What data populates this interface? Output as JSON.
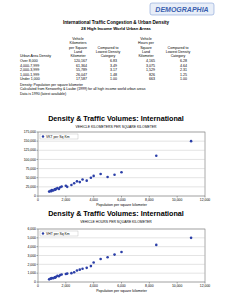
{
  "header": {
    "logo": "DEMOGRAPHIA",
    "title": "International Traffic Congestion & Urban Density",
    "subtitle": "28 High Income World Urban Areas"
  },
  "table": {
    "columns": [
      [
        "Urban Area Density"
      ],
      [
        "Vehicle",
        "Kilometers",
        "per Square",
        "Land",
        "Kilometer"
      ],
      [
        "",
        "Compared to",
        "Lowest Density",
        "Category"
      ],
      [
        "Vehicle",
        "Hours per",
        "Square",
        "Land",
        "Kilometer"
      ],
      [
        "",
        "Compared to",
        "Lowest Density",
        "Category"
      ]
    ],
    "rows": [
      [
        "Over 8,000",
        "120,167",
        "6.83",
        "4,165",
        "6.28"
      ],
      [
        "4,000-7,999",
        "61,364",
        "3.49",
        "3,075",
        "4.64"
      ],
      [
        "2,000-3,999",
        "55,789",
        "3.17",
        "1,529",
        "2.31"
      ],
      [
        "1,000-1,999",
        "26,047",
        "1.48",
        "826",
        "1.25"
      ],
      [
        "Under 1,000",
        "17,587",
        "1.00",
        "663",
        "1.00"
      ]
    ]
  },
  "notes": [
    "Density: Population per square kilometer",
    "Calculated from Kenworthy & Laube (1999) for all high income world urban areas",
    "Data is 1990 (latest available)"
  ],
  "chart_data": [
    {
      "type": "scatter",
      "title": "Density & Traffic Volumes: International",
      "subtitle": "VEHICLE KILOMETERS PER SQUARE KILOMETER",
      "x_label": "Population per square kilometer",
      "x": [
        800,
        900,
        1000,
        1100,
        1200,
        1300,
        1400,
        1500,
        1600,
        2000,
        1250,
        950,
        1700,
        2100,
        2400,
        2600,
        2800,
        3000,
        3200,
        3500,
        3800,
        4000,
        4500,
        5000,
        5500,
        6000,
        8500,
        11000
      ],
      "series": [
        {
          "name": "VKT per Sq Km",
          "color": "#2b3fa8",
          "marker": "circle",
          "values": [
            12000,
            14000,
            16000,
            15000,
            18000,
            20000,
            22000,
            19000,
            24000,
            28000,
            17000,
            13000,
            26000,
            25000,
            30000,
            35000,
            40000,
            38000,
            45000,
            42000,
            50000,
            55000,
            60000,
            52000,
            58000,
            65000,
            110000,
            150000
          ]
        }
      ],
      "xlim": [
        0,
        12000
      ],
      "xticks": [
        0,
        {
          "value": 2000,
          "label": "2,000"
        },
        {
          "value": 4000,
          "label": "4,000"
        },
        {
          "value": 6000,
          "label": "6,000"
        },
        {
          "value": 8000,
          "label": "8,000"
        },
        {
          "value": 10000,
          "label": "10,000"
        },
        {
          "value": 12000,
          "label": "12,000"
        }
      ],
      "ylim": [
        0,
        175000
      ],
      "yticks": [
        0,
        {
          "value": 25000,
          "label": "25,000"
        },
        {
          "value": 50000,
          "label": "50,000"
        },
        {
          "value": 75000,
          "label": "75,000"
        },
        {
          "value": 100000,
          "label": "100,000"
        },
        {
          "value": 125000,
          "label": "125,000"
        },
        {
          "value": 150000,
          "label": "150,000"
        },
        {
          "value": 175000,
          "label": "175,000"
        }
      ],
      "grid": true,
      "legend": "top-left"
    },
    {
      "type": "scatter",
      "title": "Density & Traffic Volumes: International",
      "subtitle": "VEHICLE HOURS PER SQUARE KILOMETER",
      "x_label": "Population per square kilometer",
      "x": [
        800,
        900,
        1000,
        1100,
        1200,
        1300,
        1400,
        1500,
        1600,
        2000,
        1250,
        950,
        1700,
        2100,
        2400,
        2600,
        2800,
        3000,
        3200,
        3500,
        3800,
        4000,
        4500,
        5000,
        5500,
        6000,
        8500,
        11000
      ],
      "series": [
        {
          "name": "VHT per Sq Km",
          "color": "#2b3fa8",
          "marker": "circle",
          "values": [
            300,
            380,
            450,
            420,
            520,
            600,
            700,
            650,
            800,
            900,
            500,
            400,
            850,
            950,
            1000,
            1100,
            1300,
            1400,
            1500,
            1600,
            1800,
            2200,
            2600,
            2800,
            3100,
            3400,
            4200,
            5000
          ]
        }
      ],
      "xlim": [
        0,
        12000
      ],
      "xticks": [
        0,
        {
          "value": 2000,
          "label": "2,000"
        },
        {
          "value": 4000,
          "label": "4,000"
        },
        {
          "value": 6000,
          "label": "6,000"
        },
        {
          "value": 8000,
          "label": "8,000"
        },
        {
          "value": 10000,
          "label": "10,000"
        },
        {
          "value": 12000,
          "label": "12,000"
        }
      ],
      "ylim": [
        0,
        6000
      ],
      "yticks": [
        0,
        {
          "value": 1000,
          "label": "1,000"
        },
        {
          "value": 2000,
          "label": "2,000"
        },
        {
          "value": 3000,
          "label": "3,000"
        },
        {
          "value": 4000,
          "label": "4,000"
        },
        {
          "value": 5000,
          "label": "5,000"
        },
        {
          "value": 6000,
          "label": "6,000"
        }
      ],
      "grid": true,
      "legend": "top-left"
    }
  ]
}
